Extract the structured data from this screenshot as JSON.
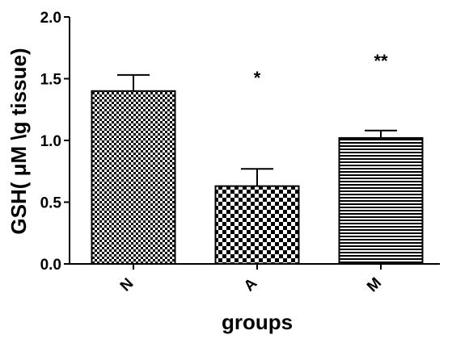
{
  "chart_data": {
    "type": "bar",
    "title": "",
    "xlabel": "groups",
    "ylabel": "GSH( μM \\g tissue)",
    "ylim": [
      0,
      2.0
    ],
    "yticks": [
      0.0,
      0.5,
      1.0,
      1.5,
      2.0
    ],
    "ytick_labels": [
      "0.0",
      "0.5",
      "1.0",
      "1.5",
      "2.0"
    ],
    "categories": [
      "N",
      "A",
      "M"
    ],
    "values": [
      1.4,
      0.63,
      1.02
    ],
    "errors": [
      0.13,
      0.14,
      0.06
    ],
    "annotations": [
      "",
      "*",
      "**"
    ],
    "patterns": [
      "fine-checker",
      "coarse-checker",
      "horizontal-lines"
    ],
    "grid": false,
    "legend": "none",
    "colors": {
      "bar_stroke": "#000000",
      "fill": "#000000",
      "background": "#ffffff"
    }
  }
}
